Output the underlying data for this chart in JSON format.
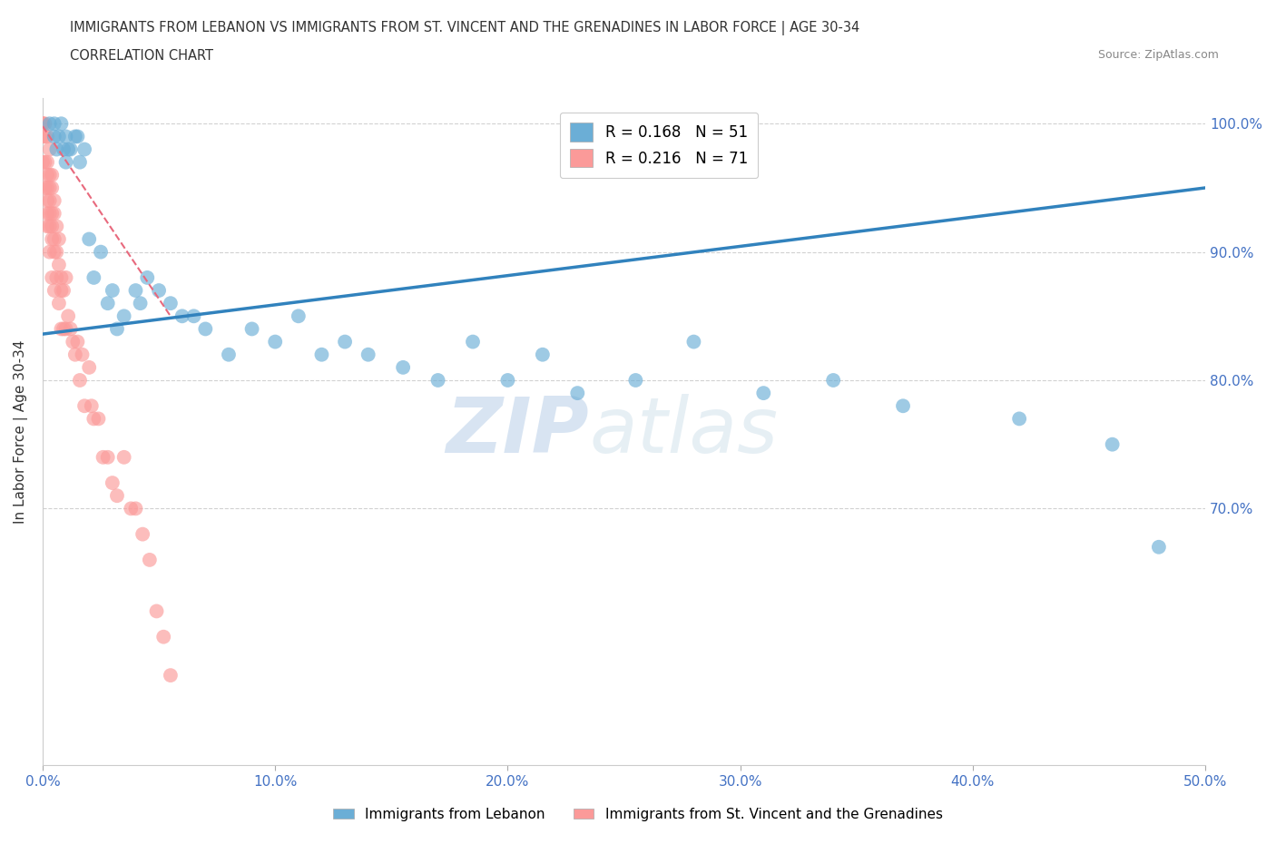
{
  "title_line1": "IMMIGRANTS FROM LEBANON VS IMMIGRANTS FROM ST. VINCENT AND THE GRENADINES IN LABOR FORCE | AGE 30-34",
  "title_line2": "CORRELATION CHART",
  "source_text": "Source: ZipAtlas.com",
  "ylabel": "In Labor Force | Age 30-34",
  "xlim": [
    0.0,
    0.5
  ],
  "ylim": [
    0.5,
    1.02
  ],
  "xtick_vals": [
    0.0,
    0.1,
    0.2,
    0.3,
    0.4,
    0.5
  ],
  "xtick_labels": [
    "0.0%",
    "10.0%",
    "20.0%",
    "30.0%",
    "40.0%",
    "50.0%"
  ],
  "ytick_labels": [
    "100.0%",
    "90.0%",
    "80.0%",
    "70.0%"
  ],
  "ytick_values": [
    1.0,
    0.9,
    0.8,
    0.7
  ],
  "legend_blue_label": "Immigrants from Lebanon",
  "legend_pink_label": "Immigrants from St. Vincent and the Grenadines",
  "R_blue": 0.168,
  "N_blue": 51,
  "R_pink": 0.216,
  "N_pink": 71,
  "blue_color": "#6baed6",
  "pink_color": "#fb9a99",
  "trend_blue_color": "#3182bd",
  "trend_pink_color": "#e8697d",
  "background_color": "#ffffff",
  "watermark_zip": "ZIP",
  "watermark_atlas": "atlas",
  "blue_points_x": [
    0.003,
    0.005,
    0.005,
    0.006,
    0.007,
    0.008,
    0.009,
    0.01,
    0.01,
    0.011,
    0.012,
    0.014,
    0.015,
    0.016,
    0.018,
    0.02,
    0.022,
    0.025,
    0.028,
    0.03,
    0.032,
    0.035,
    0.04,
    0.042,
    0.045,
    0.05,
    0.055,
    0.06,
    0.065,
    0.07,
    0.08,
    0.09,
    0.1,
    0.11,
    0.12,
    0.13,
    0.14,
    0.155,
    0.17,
    0.185,
    0.2,
    0.215,
    0.23,
    0.255,
    0.28,
    0.31,
    0.34,
    0.37,
    0.42,
    0.46,
    0.48
  ],
  "blue_points_y": [
    1.0,
    1.0,
    0.99,
    0.98,
    0.99,
    1.0,
    0.98,
    0.97,
    0.99,
    0.98,
    0.98,
    0.99,
    0.99,
    0.97,
    0.98,
    0.91,
    0.88,
    0.9,
    0.86,
    0.87,
    0.84,
    0.85,
    0.87,
    0.86,
    0.88,
    0.87,
    0.86,
    0.85,
    0.85,
    0.84,
    0.82,
    0.84,
    0.83,
    0.85,
    0.82,
    0.83,
    0.82,
    0.81,
    0.8,
    0.83,
    0.8,
    0.82,
    0.79,
    0.8,
    0.83,
    0.79,
    0.8,
    0.78,
    0.77,
    0.75,
    0.67
  ],
  "pink_points_x": [
    0.0,
    0.0,
    0.0,
    0.0,
    0.0,
    0.001,
    0.001,
    0.001,
    0.001,
    0.002,
    0.002,
    0.002,
    0.002,
    0.002,
    0.002,
    0.002,
    0.003,
    0.003,
    0.003,
    0.003,
    0.003,
    0.003,
    0.003,
    0.004,
    0.004,
    0.004,
    0.004,
    0.004,
    0.004,
    0.005,
    0.005,
    0.005,
    0.005,
    0.005,
    0.006,
    0.006,
    0.006,
    0.007,
    0.007,
    0.007,
    0.008,
    0.008,
    0.008,
    0.009,
    0.009,
    0.01,
    0.01,
    0.011,
    0.012,
    0.013,
    0.014,
    0.015,
    0.016,
    0.017,
    0.018,
    0.02,
    0.021,
    0.022,
    0.024,
    0.026,
    0.028,
    0.03,
    0.032,
    0.035,
    0.038,
    0.04,
    0.043,
    0.046,
    0.049,
    0.052,
    0.055
  ],
  "pink_points_y": [
    1.0,
    1.0,
    1.0,
    0.99,
    0.97,
    1.0,
    0.99,
    0.97,
    0.95,
    0.99,
    0.97,
    0.96,
    0.95,
    0.94,
    0.93,
    0.92,
    0.98,
    0.96,
    0.95,
    0.94,
    0.93,
    0.92,
    0.9,
    0.96,
    0.95,
    0.93,
    0.92,
    0.91,
    0.88,
    0.94,
    0.93,
    0.91,
    0.9,
    0.87,
    0.92,
    0.9,
    0.88,
    0.91,
    0.89,
    0.86,
    0.88,
    0.87,
    0.84,
    0.87,
    0.84,
    0.88,
    0.84,
    0.85,
    0.84,
    0.83,
    0.82,
    0.83,
    0.8,
    0.82,
    0.78,
    0.81,
    0.78,
    0.77,
    0.77,
    0.74,
    0.74,
    0.72,
    0.71,
    0.74,
    0.7,
    0.7,
    0.68,
    0.66,
    0.62,
    0.6,
    0.57
  ],
  "blue_trend_x0": 0.0,
  "blue_trend_y0": 0.836,
  "blue_trend_x1": 0.5,
  "blue_trend_y1": 0.95,
  "pink_trend_x0": 0.0,
  "pink_trend_y0": 0.998,
  "pink_trend_x1": 0.055,
  "pink_trend_y1": 0.85
}
